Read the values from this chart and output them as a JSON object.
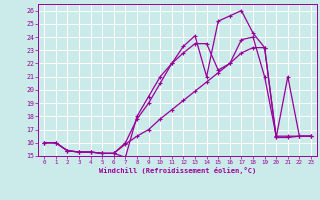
{
  "xlabel": "Windchill (Refroidissement éolien,°C)",
  "bg_color": "#cbeaea",
  "line_color": "#990099",
  "grid_color": "#ffffff",
  "xlim": [
    -0.5,
    23.5
  ],
  "ylim": [
    15,
    26.5
  ],
  "xticks": [
    0,
    1,
    2,
    3,
    4,
    5,
    6,
    7,
    8,
    9,
    10,
    11,
    12,
    13,
    14,
    15,
    16,
    17,
    18,
    19,
    20,
    21,
    22,
    23
  ],
  "yticks": [
    15,
    16,
    17,
    18,
    19,
    20,
    21,
    22,
    23,
    24,
    25,
    26
  ],
  "line1_x": [
    0,
    1,
    2,
    3,
    4,
    5,
    6,
    7,
    8,
    9,
    10,
    11,
    12,
    13,
    14,
    15,
    16,
    17,
    18,
    19,
    20,
    21,
    22,
    23
  ],
  "line1_y": [
    16.0,
    16.0,
    15.4,
    15.3,
    15.3,
    15.2,
    15.2,
    14.9,
    18.0,
    19.5,
    21.0,
    22.0,
    23.3,
    24.1,
    21.0,
    25.2,
    25.6,
    26.0,
    24.3,
    23.2,
    16.4,
    21.0,
    16.5,
    16.5
  ],
  "line2_x": [
    0,
    1,
    2,
    3,
    4,
    5,
    6,
    7,
    8,
    9,
    10,
    11,
    12,
    13,
    14,
    15,
    16,
    17,
    18,
    19,
    20,
    21,
    22,
    23
  ],
  "line2_y": [
    16.0,
    16.0,
    15.4,
    15.3,
    15.3,
    15.2,
    15.2,
    15.9,
    16.5,
    17.0,
    17.8,
    18.5,
    19.2,
    19.9,
    20.6,
    21.3,
    22.0,
    22.8,
    23.2,
    23.2,
    16.4,
    16.4,
    16.5,
    16.5
  ],
  "line3_x": [
    0,
    1,
    2,
    3,
    4,
    5,
    6,
    7,
    8,
    9,
    10,
    11,
    12,
    13,
    14,
    15,
    16,
    17,
    18,
    19,
    20,
    21,
    22,
    23
  ],
  "line3_y": [
    16.0,
    16.0,
    15.4,
    15.3,
    15.3,
    15.2,
    15.2,
    16.0,
    17.8,
    19.0,
    20.5,
    22.0,
    22.8,
    23.5,
    23.5,
    21.5,
    22.0,
    23.8,
    24.0,
    21.0,
    16.5,
    16.5,
    16.5,
    16.5
  ]
}
